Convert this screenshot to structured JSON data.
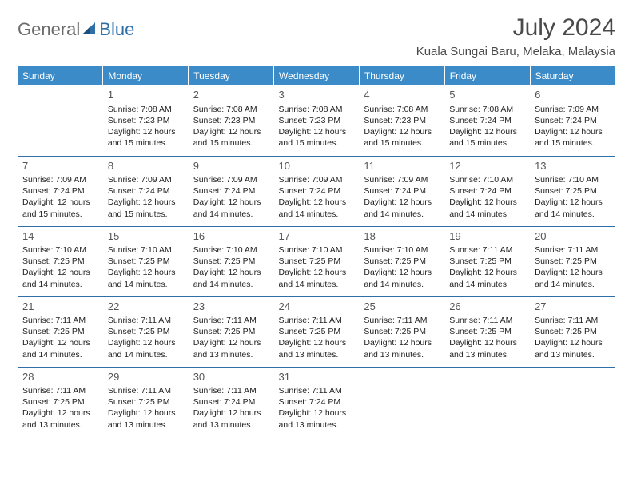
{
  "logo": {
    "text1": "General",
    "text2": "Blue"
  },
  "title": "July 2024",
  "location": "Kuala Sungai Baru, Melaka, Malaysia",
  "colors": {
    "header_bg": "#3b8bc8",
    "header_text": "#ffffff",
    "rule": "#2f6fa8",
    "logo_gray": "#6b6b6b",
    "logo_blue": "#2f6fa8",
    "body_text": "#333333"
  },
  "day_headers": [
    "Sunday",
    "Monday",
    "Tuesday",
    "Wednesday",
    "Thursday",
    "Friday",
    "Saturday"
  ],
  "weeks": [
    [
      null,
      {
        "n": "1",
        "sr": "Sunrise: 7:08 AM",
        "ss": "Sunset: 7:23 PM",
        "d1": "Daylight: 12 hours",
        "d2": "and 15 minutes."
      },
      {
        "n": "2",
        "sr": "Sunrise: 7:08 AM",
        "ss": "Sunset: 7:23 PM",
        "d1": "Daylight: 12 hours",
        "d2": "and 15 minutes."
      },
      {
        "n": "3",
        "sr": "Sunrise: 7:08 AM",
        "ss": "Sunset: 7:23 PM",
        "d1": "Daylight: 12 hours",
        "d2": "and 15 minutes."
      },
      {
        "n": "4",
        "sr": "Sunrise: 7:08 AM",
        "ss": "Sunset: 7:23 PM",
        "d1": "Daylight: 12 hours",
        "d2": "and 15 minutes."
      },
      {
        "n": "5",
        "sr": "Sunrise: 7:08 AM",
        "ss": "Sunset: 7:24 PM",
        "d1": "Daylight: 12 hours",
        "d2": "and 15 minutes."
      },
      {
        "n": "6",
        "sr": "Sunrise: 7:09 AM",
        "ss": "Sunset: 7:24 PM",
        "d1": "Daylight: 12 hours",
        "d2": "and 15 minutes."
      }
    ],
    [
      {
        "n": "7",
        "sr": "Sunrise: 7:09 AM",
        "ss": "Sunset: 7:24 PM",
        "d1": "Daylight: 12 hours",
        "d2": "and 15 minutes."
      },
      {
        "n": "8",
        "sr": "Sunrise: 7:09 AM",
        "ss": "Sunset: 7:24 PM",
        "d1": "Daylight: 12 hours",
        "d2": "and 15 minutes."
      },
      {
        "n": "9",
        "sr": "Sunrise: 7:09 AM",
        "ss": "Sunset: 7:24 PM",
        "d1": "Daylight: 12 hours",
        "d2": "and 14 minutes."
      },
      {
        "n": "10",
        "sr": "Sunrise: 7:09 AM",
        "ss": "Sunset: 7:24 PM",
        "d1": "Daylight: 12 hours",
        "d2": "and 14 minutes."
      },
      {
        "n": "11",
        "sr": "Sunrise: 7:09 AM",
        "ss": "Sunset: 7:24 PM",
        "d1": "Daylight: 12 hours",
        "d2": "and 14 minutes."
      },
      {
        "n": "12",
        "sr": "Sunrise: 7:10 AM",
        "ss": "Sunset: 7:24 PM",
        "d1": "Daylight: 12 hours",
        "d2": "and 14 minutes."
      },
      {
        "n": "13",
        "sr": "Sunrise: 7:10 AM",
        "ss": "Sunset: 7:25 PM",
        "d1": "Daylight: 12 hours",
        "d2": "and 14 minutes."
      }
    ],
    [
      {
        "n": "14",
        "sr": "Sunrise: 7:10 AM",
        "ss": "Sunset: 7:25 PM",
        "d1": "Daylight: 12 hours",
        "d2": "and 14 minutes."
      },
      {
        "n": "15",
        "sr": "Sunrise: 7:10 AM",
        "ss": "Sunset: 7:25 PM",
        "d1": "Daylight: 12 hours",
        "d2": "and 14 minutes."
      },
      {
        "n": "16",
        "sr": "Sunrise: 7:10 AM",
        "ss": "Sunset: 7:25 PM",
        "d1": "Daylight: 12 hours",
        "d2": "and 14 minutes."
      },
      {
        "n": "17",
        "sr": "Sunrise: 7:10 AM",
        "ss": "Sunset: 7:25 PM",
        "d1": "Daylight: 12 hours",
        "d2": "and 14 minutes."
      },
      {
        "n": "18",
        "sr": "Sunrise: 7:10 AM",
        "ss": "Sunset: 7:25 PM",
        "d1": "Daylight: 12 hours",
        "d2": "and 14 minutes."
      },
      {
        "n": "19",
        "sr": "Sunrise: 7:11 AM",
        "ss": "Sunset: 7:25 PM",
        "d1": "Daylight: 12 hours",
        "d2": "and 14 minutes."
      },
      {
        "n": "20",
        "sr": "Sunrise: 7:11 AM",
        "ss": "Sunset: 7:25 PM",
        "d1": "Daylight: 12 hours",
        "d2": "and 14 minutes."
      }
    ],
    [
      {
        "n": "21",
        "sr": "Sunrise: 7:11 AM",
        "ss": "Sunset: 7:25 PM",
        "d1": "Daylight: 12 hours",
        "d2": "and 14 minutes."
      },
      {
        "n": "22",
        "sr": "Sunrise: 7:11 AM",
        "ss": "Sunset: 7:25 PM",
        "d1": "Daylight: 12 hours",
        "d2": "and 14 minutes."
      },
      {
        "n": "23",
        "sr": "Sunrise: 7:11 AM",
        "ss": "Sunset: 7:25 PM",
        "d1": "Daylight: 12 hours",
        "d2": "and 13 minutes."
      },
      {
        "n": "24",
        "sr": "Sunrise: 7:11 AM",
        "ss": "Sunset: 7:25 PM",
        "d1": "Daylight: 12 hours",
        "d2": "and 13 minutes."
      },
      {
        "n": "25",
        "sr": "Sunrise: 7:11 AM",
        "ss": "Sunset: 7:25 PM",
        "d1": "Daylight: 12 hours",
        "d2": "and 13 minutes."
      },
      {
        "n": "26",
        "sr": "Sunrise: 7:11 AM",
        "ss": "Sunset: 7:25 PM",
        "d1": "Daylight: 12 hours",
        "d2": "and 13 minutes."
      },
      {
        "n": "27",
        "sr": "Sunrise: 7:11 AM",
        "ss": "Sunset: 7:25 PM",
        "d1": "Daylight: 12 hours",
        "d2": "and 13 minutes."
      }
    ],
    [
      {
        "n": "28",
        "sr": "Sunrise: 7:11 AM",
        "ss": "Sunset: 7:25 PM",
        "d1": "Daylight: 12 hours",
        "d2": "and 13 minutes."
      },
      {
        "n": "29",
        "sr": "Sunrise: 7:11 AM",
        "ss": "Sunset: 7:25 PM",
        "d1": "Daylight: 12 hours",
        "d2": "and 13 minutes."
      },
      {
        "n": "30",
        "sr": "Sunrise: 7:11 AM",
        "ss": "Sunset: 7:24 PM",
        "d1": "Daylight: 12 hours",
        "d2": "and 13 minutes."
      },
      {
        "n": "31",
        "sr": "Sunrise: 7:11 AM",
        "ss": "Sunset: 7:24 PM",
        "d1": "Daylight: 12 hours",
        "d2": "and 13 minutes."
      },
      null,
      null,
      null
    ]
  ]
}
